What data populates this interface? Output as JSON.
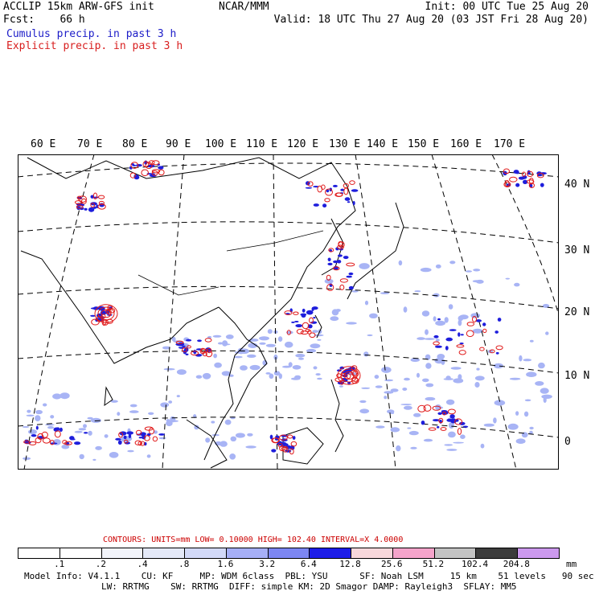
{
  "header": {
    "line1_left": "ACCLIP 15km ARW-GFS init",
    "fcst_label": "Fcst:",
    "fcst_value": "66 h",
    "center": "NCAR/MMM",
    "init": "Init: 00 UTC Tue 25 Aug 20",
    "valid": "Valid: 18 UTC Thu 27 Aug 20 (03 JST Fri 28 Aug 20)"
  },
  "legend": {
    "cumulus": "Cumulus precip. in past 3 h",
    "explicit": "Explicit precip. in past 3 h"
  },
  "axes": {
    "longitudes": [
      "60 E",
      "70 E",
      "80 E",
      "90 E",
      "100 E",
      "110 E",
      "120 E",
      "130 E",
      "140 E",
      "150 E",
      "160 E",
      "170 E"
    ],
    "latitudes": [
      "40 N",
      "30 N",
      "20 N",
      "10 N",
      "0"
    ]
  },
  "contours": {
    "label": "CONTOURS:",
    "units": "UNITS=mm",
    "low": "LOW= 0.10000",
    "high": "HIGH= 102.40",
    "interval": "INTERVAL=X 4.0000"
  },
  "colorbar": {
    "ticks": [
      ".1",
      ".2",
      ".4",
      ".8",
      "1.6",
      "3.2",
      "6.4",
      "12.8",
      "25.6",
      "51.2",
      "102.4",
      "204.8"
    ],
    "unit": "mm",
    "colors": [
      "#ffffff",
      "#ffffff",
      "#f2f4fb",
      "#e4e9f8",
      "#d2d9f8",
      "#a6aff7",
      "#7c86f2",
      "#1d1de8",
      "#f8d8dc",
      "#f5a4cb",
      "#c3c3c3",
      "#3c3c3c",
      "#cc99ee"
    ]
  },
  "model_info": {
    "line1": "Model Info: V4.1.1    CU: KF     MP: WDM 6class  PBL: YSU      SF: Noah LSM     15 km    51 levels   90 sec",
    "line2": "LW: RRTMG    SW: RRTMG  DIFF: simple KM: 2D Smagor DAMP: Rayleigh3  SFLAY: MM5"
  },
  "map_colors": {
    "cumulus": "#1e1edc",
    "cumulus_light": "#a8b4f5",
    "explicit": "#e01818",
    "land": "#000000",
    "grid": "#000000"
  }
}
